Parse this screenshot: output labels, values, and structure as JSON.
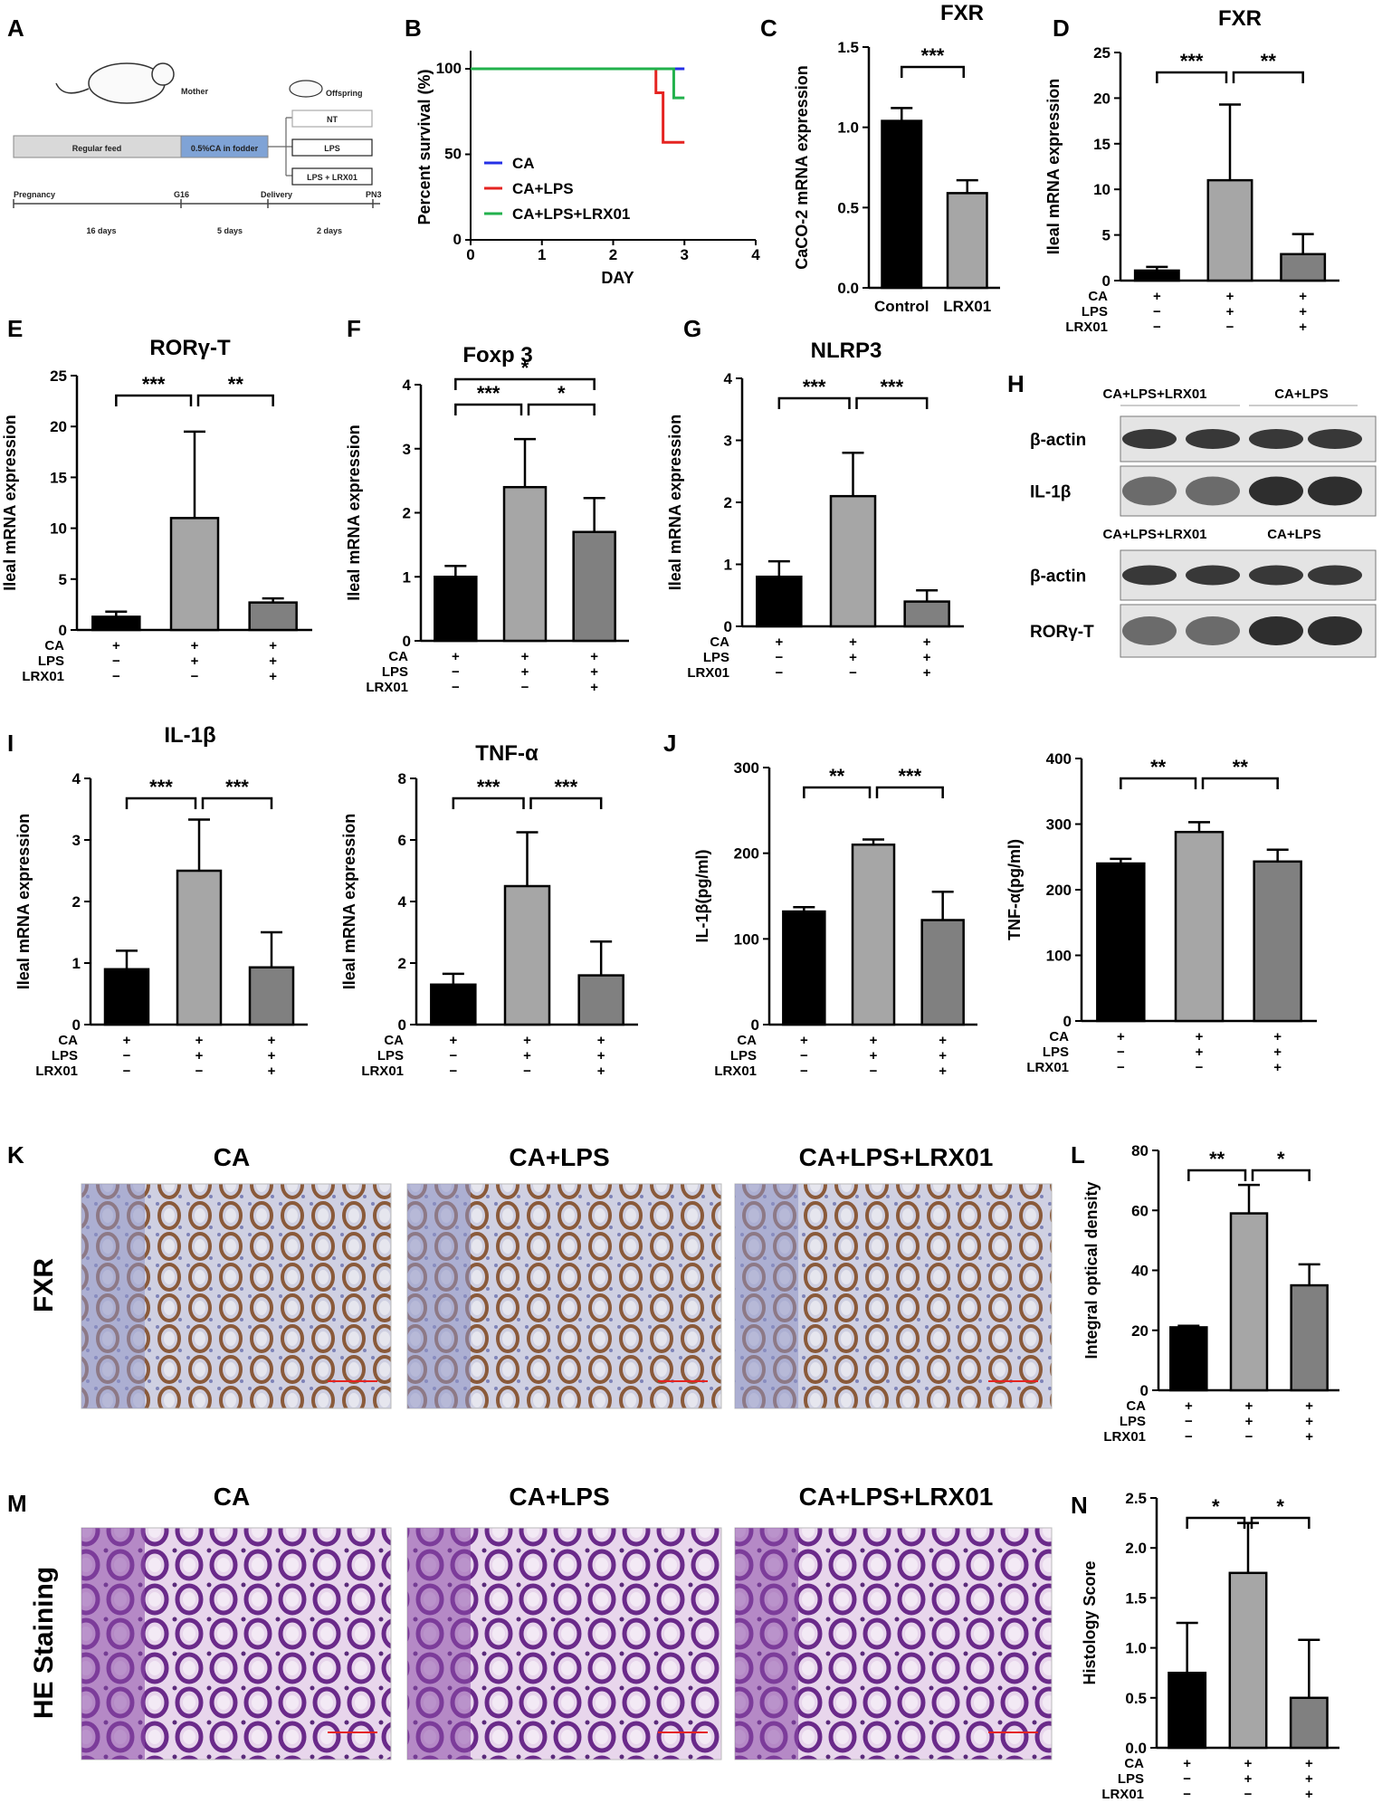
{
  "colors": {
    "ca": "#000000",
    "lps": "#a6a6a6",
    "lrx": "#808080",
    "blue": "#2430e6",
    "red": "#e52421",
    "green": "#22b14c",
    "ihc_bg": "#c9c9d9",
    "he_bg": "#c9a6cf"
  },
  "panelA": {
    "letter": "A",
    "mother": "Mother",
    "offspring": "Offspring",
    "feed1": "Regular feed",
    "feed2": "0.5%CA in fodder",
    "groups": [
      "NT",
      "LPS",
      "LPS + LRX01"
    ],
    "timeline": [
      "Pregnancy",
      "G16",
      "Delivery",
      "PN3"
    ],
    "durations": [
      "16 days",
      "5 days",
      "2 days"
    ]
  },
  "charts": [
    {
      "id": "B",
      "type": "line",
      "letter": "B",
      "title": "",
      "xlabel": "DAY",
      "ylabel": "Percent survival (%)",
      "xlim": [
        0,
        4
      ],
      "ylim": [
        0,
        100
      ],
      "xticks": [
        "0",
        "1",
        "2",
        "3",
        "4"
      ],
      "yticks": [
        "0",
        "50",
        "100"
      ],
      "series": [
        {
          "name": "CA",
          "color": "blue",
          "x": [
            0,
            3,
            3.0
          ],
          "y": [
            100,
            100,
            100
          ]
        },
        {
          "name": "CA+LPS",
          "color": "red",
          "x": [
            0,
            2.6,
            2.6,
            2.7,
            2.7,
            3.0
          ],
          "y": [
            100,
            100,
            86,
            86,
            57,
            57
          ]
        },
        {
          "name": "CA+LPS+LRX01",
          "color": "green",
          "x": [
            0,
            2.85,
            2.85,
            3.0
          ],
          "y": [
            100,
            100,
            83,
            83
          ]
        }
      ]
    },
    {
      "id": "C",
      "type": "bar",
      "letter": "C",
      "title": "FXR",
      "ylabel": "CaCO-2 mRNA expression",
      "ylim": [
        0,
        1.5
      ],
      "yticks": [
        "0.0",
        "0.5",
        "1.0",
        "1.5"
      ],
      "categories": [
        "Control",
        "LRX01"
      ],
      "values": [
        1.04,
        0.59
      ],
      "errors": [
        0.08,
        0.08
      ],
      "colors": [
        "ca",
        "lps"
      ],
      "sig": [
        {
          "from": 0,
          "to": 1,
          "label": "***"
        }
      ]
    },
    {
      "id": "D",
      "type": "bar",
      "letter": "D",
      "title": "FXR",
      "ylabel": "Ileal mRNA expression",
      "ylim": [
        0,
        25
      ],
      "yticks": [
        "0",
        "5",
        "10",
        "15",
        "20",
        "25"
      ],
      "values": [
        1.1,
        11.0,
        2.9
      ],
      "errors": [
        0.4,
        8.3,
        2.2
      ],
      "sig": [
        {
          "from": 0,
          "to": 1,
          "label": "***"
        },
        {
          "from": 1,
          "to": 2,
          "label": "**"
        }
      ]
    },
    {
      "id": "E",
      "type": "bar",
      "letter": "E",
      "title": "RORγ-T",
      "ylabel": "Ileal mRNA expression",
      "ylim": [
        0,
        25
      ],
      "yticks": [
        "0",
        "5",
        "10",
        "15",
        "20",
        "25"
      ],
      "values": [
        1.3,
        11.0,
        2.7
      ],
      "errors": [
        0.5,
        8.5,
        0.4
      ],
      "sig": [
        {
          "from": 0,
          "to": 1,
          "label": "***"
        },
        {
          "from": 1,
          "to": 2,
          "label": "**"
        }
      ]
    },
    {
      "id": "F",
      "type": "bar",
      "letter": "F",
      "title": "Foxp 3",
      "ylabel": "Ileal mRNA expression",
      "ylim": [
        0,
        4
      ],
      "yticks": [
        "0",
        "1",
        "2",
        "3",
        "4"
      ],
      "values": [
        1.0,
        2.4,
        1.7
      ],
      "errors": [
        0.17,
        0.75,
        0.53
      ],
      "sig": [
        {
          "from": 0,
          "to": 1,
          "label": "***"
        },
        {
          "from": 1,
          "to": 2,
          "label": "*"
        },
        {
          "from": 0,
          "to": 2,
          "label": "*",
          "level": 2
        }
      ]
    },
    {
      "id": "G",
      "type": "bar",
      "letter": "G",
      "title": "NLRP3",
      "ylabel": "Ileal mRNA expression",
      "ylim": [
        0,
        4
      ],
      "yticks": [
        "0",
        "1",
        "2",
        "3",
        "4"
      ],
      "values": [
        0.8,
        2.1,
        0.4
      ],
      "errors": [
        0.25,
        0.7,
        0.18
      ],
      "sig": [
        {
          "from": 0,
          "to": 1,
          "label": "***"
        },
        {
          "from": 1,
          "to": 2,
          "label": "***"
        }
      ]
    },
    {
      "id": "I1",
      "type": "bar",
      "letter": "I",
      "title": "IL-1β",
      "ylabel": "Ileal mRNA expression",
      "ylim": [
        0,
        4
      ],
      "yticks": [
        "0",
        "1",
        "2",
        "3",
        "4"
      ],
      "values": [
        0.9,
        2.5,
        0.93
      ],
      "errors": [
        0.3,
        0.83,
        0.57
      ],
      "sig": [
        {
          "from": 0,
          "to": 1,
          "label": "***"
        },
        {
          "from": 1,
          "to": 2,
          "label": "***"
        }
      ]
    },
    {
      "id": "I2",
      "type": "bar",
      "letter": "",
      "title": "TNF-α",
      "ylabel": "Ileal mRNA expression",
      "ylim": [
        0,
        8
      ],
      "yticks": [
        "0",
        "2",
        "4",
        "6",
        "8"
      ],
      "values": [
        1.3,
        4.5,
        1.6
      ],
      "errors": [
        0.35,
        1.75,
        1.1
      ],
      "sig": [
        {
          "from": 0,
          "to": 1,
          "label": "***"
        },
        {
          "from": 1,
          "to": 2,
          "label": "***"
        }
      ]
    },
    {
      "id": "J1",
      "type": "bar",
      "letter": "J",
      "title": "",
      "ylabel": "IL-1β(pg/ml)",
      "ylim": [
        0,
        300
      ],
      "yticks": [
        "0",
        "100",
        "200",
        "300"
      ],
      "values": [
        132,
        210,
        122
      ],
      "errors": [
        5,
        6,
        33
      ],
      "sig": [
        {
          "from": 0,
          "to": 1,
          "label": "**"
        },
        {
          "from": 1,
          "to": 2,
          "label": "***"
        }
      ]
    },
    {
      "id": "J2",
      "type": "bar",
      "letter": "",
      "title": "",
      "ylabel": "TNF-α(pg/ml)",
      "ylim": [
        0,
        400
      ],
      "yticks": [
        "0",
        "100",
        "200",
        "300",
        "400"
      ],
      "values": [
        240,
        288,
        243
      ],
      "errors": [
        7,
        15,
        18
      ],
      "sig": [
        {
          "from": 0,
          "to": 1,
          "label": "**"
        },
        {
          "from": 1,
          "to": 2,
          "label": "**"
        }
      ]
    },
    {
      "id": "L",
      "type": "bar",
      "letter": "L",
      "title": "",
      "ylabel": "Integral optical density",
      "ylim": [
        0,
        80
      ],
      "yticks": [
        "0",
        "20",
        "40",
        "60",
        "80"
      ],
      "values": [
        21,
        59,
        35
      ],
      "errors": [
        0.5,
        9.5,
        7
      ],
      "sig": [
        {
          "from": 0,
          "to": 1,
          "label": "**"
        },
        {
          "from": 1,
          "to": 2,
          "label": "*"
        }
      ]
    },
    {
      "id": "N",
      "type": "bar",
      "letter": "N",
      "title": "",
      "ylabel": "Histology Score",
      "ylim": [
        0,
        2.5
      ],
      "yticks": [
        "0.0",
        "0.5",
        "1.0",
        "1.5",
        "2.0",
        "2.5"
      ],
      "values": [
        0.75,
        1.75,
        0.5
      ],
      "errors": [
        0.5,
        0.5,
        0.58
      ],
      "sig": [
        {
          "from": 0,
          "to": 1,
          "label": "*"
        },
        {
          "from": 1,
          "to": 2,
          "label": "*"
        }
      ]
    }
  ],
  "treatment_rows": {
    "labels": [
      "CA",
      "LPS",
      "LRX01"
    ],
    "matrix": [
      [
        "+",
        "+",
        "+"
      ],
      [
        "−",
        "+",
        "+"
      ],
      [
        "−",
        "−",
        "+"
      ]
    ]
  },
  "blot": {
    "letter": "H",
    "top_groups": [
      "CA+LPS+LRX01",
      "CA+LPS"
    ],
    "bottom_groups": [
      "CA+LPS+LRX01",
      "CA+LPS"
    ],
    "bands": [
      "β-actin",
      "IL-1β",
      "β-actin",
      "RORγ-T"
    ]
  },
  "micro": {
    "K": {
      "letter": "K",
      "row_label": "FXR",
      "columns": [
        "CA",
        "CA+LPS",
        "CA+LPS+LRX01"
      ]
    },
    "M": {
      "letter": "M",
      "row_label": "HE Staining",
      "columns": [
        "CA",
        "CA+LPS",
        "CA+LPS+LRX01"
      ]
    }
  }
}
